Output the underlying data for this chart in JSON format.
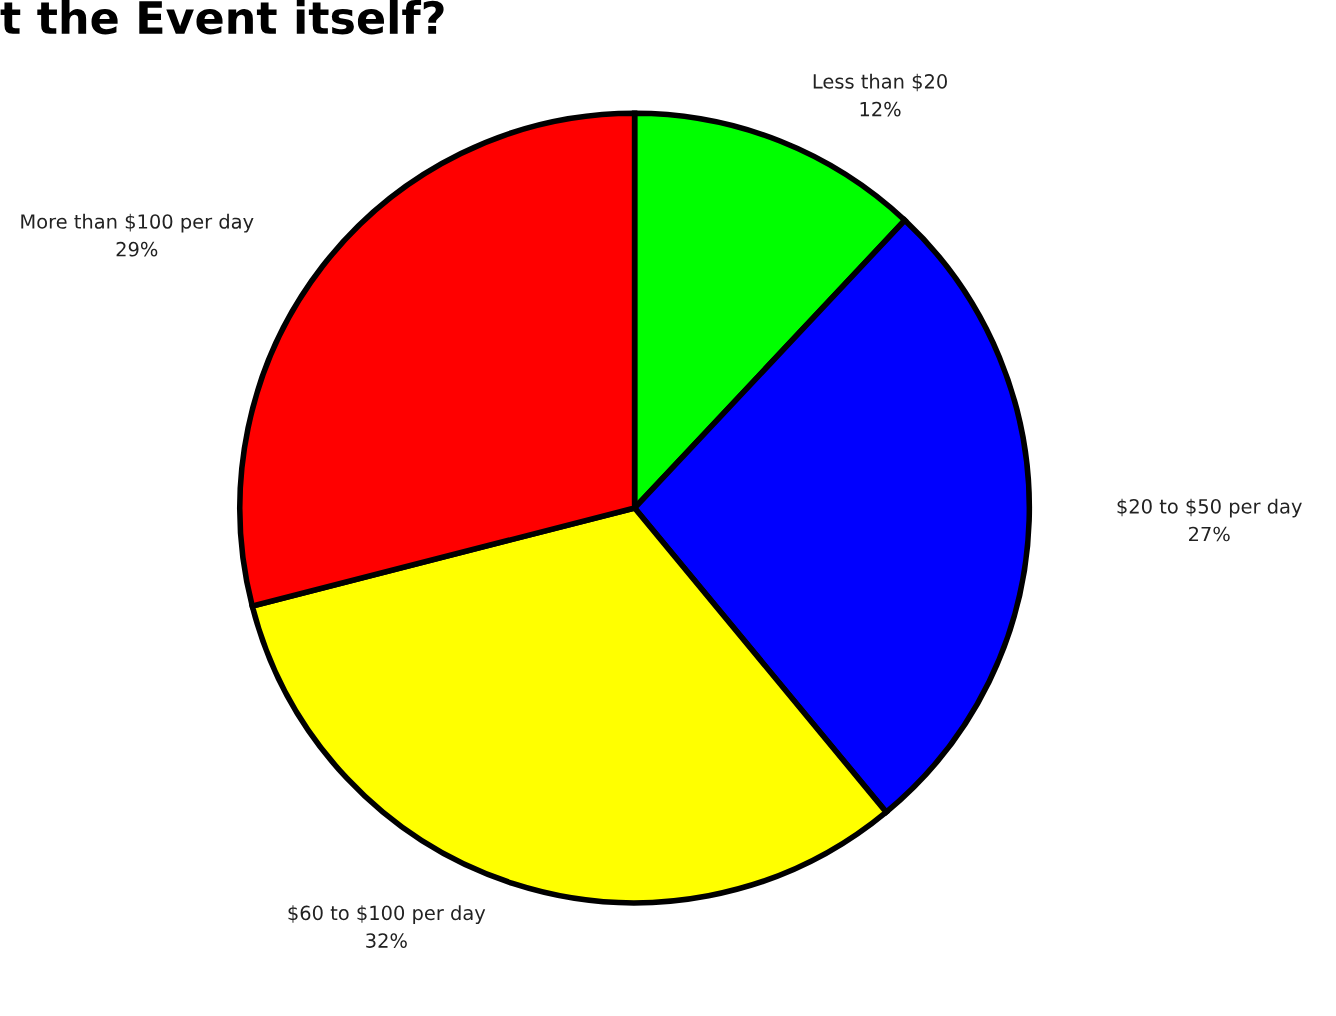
{
  "chart_data": {
    "type": "pie",
    "title": "t the Event itself?",
    "categories": [
      "Less than $20",
      "$20 to $50 per day",
      "$60 to $100 per day",
      "More than $100 per day"
    ],
    "values": [
      12,
      27,
      32,
      29
    ],
    "colors": [
      "#00ff00",
      "#0000ff",
      "#ffff00",
      "#ff0000"
    ],
    "value_labels": [
      "12%",
      "27%",
      "32%",
      "29%"
    ]
  }
}
